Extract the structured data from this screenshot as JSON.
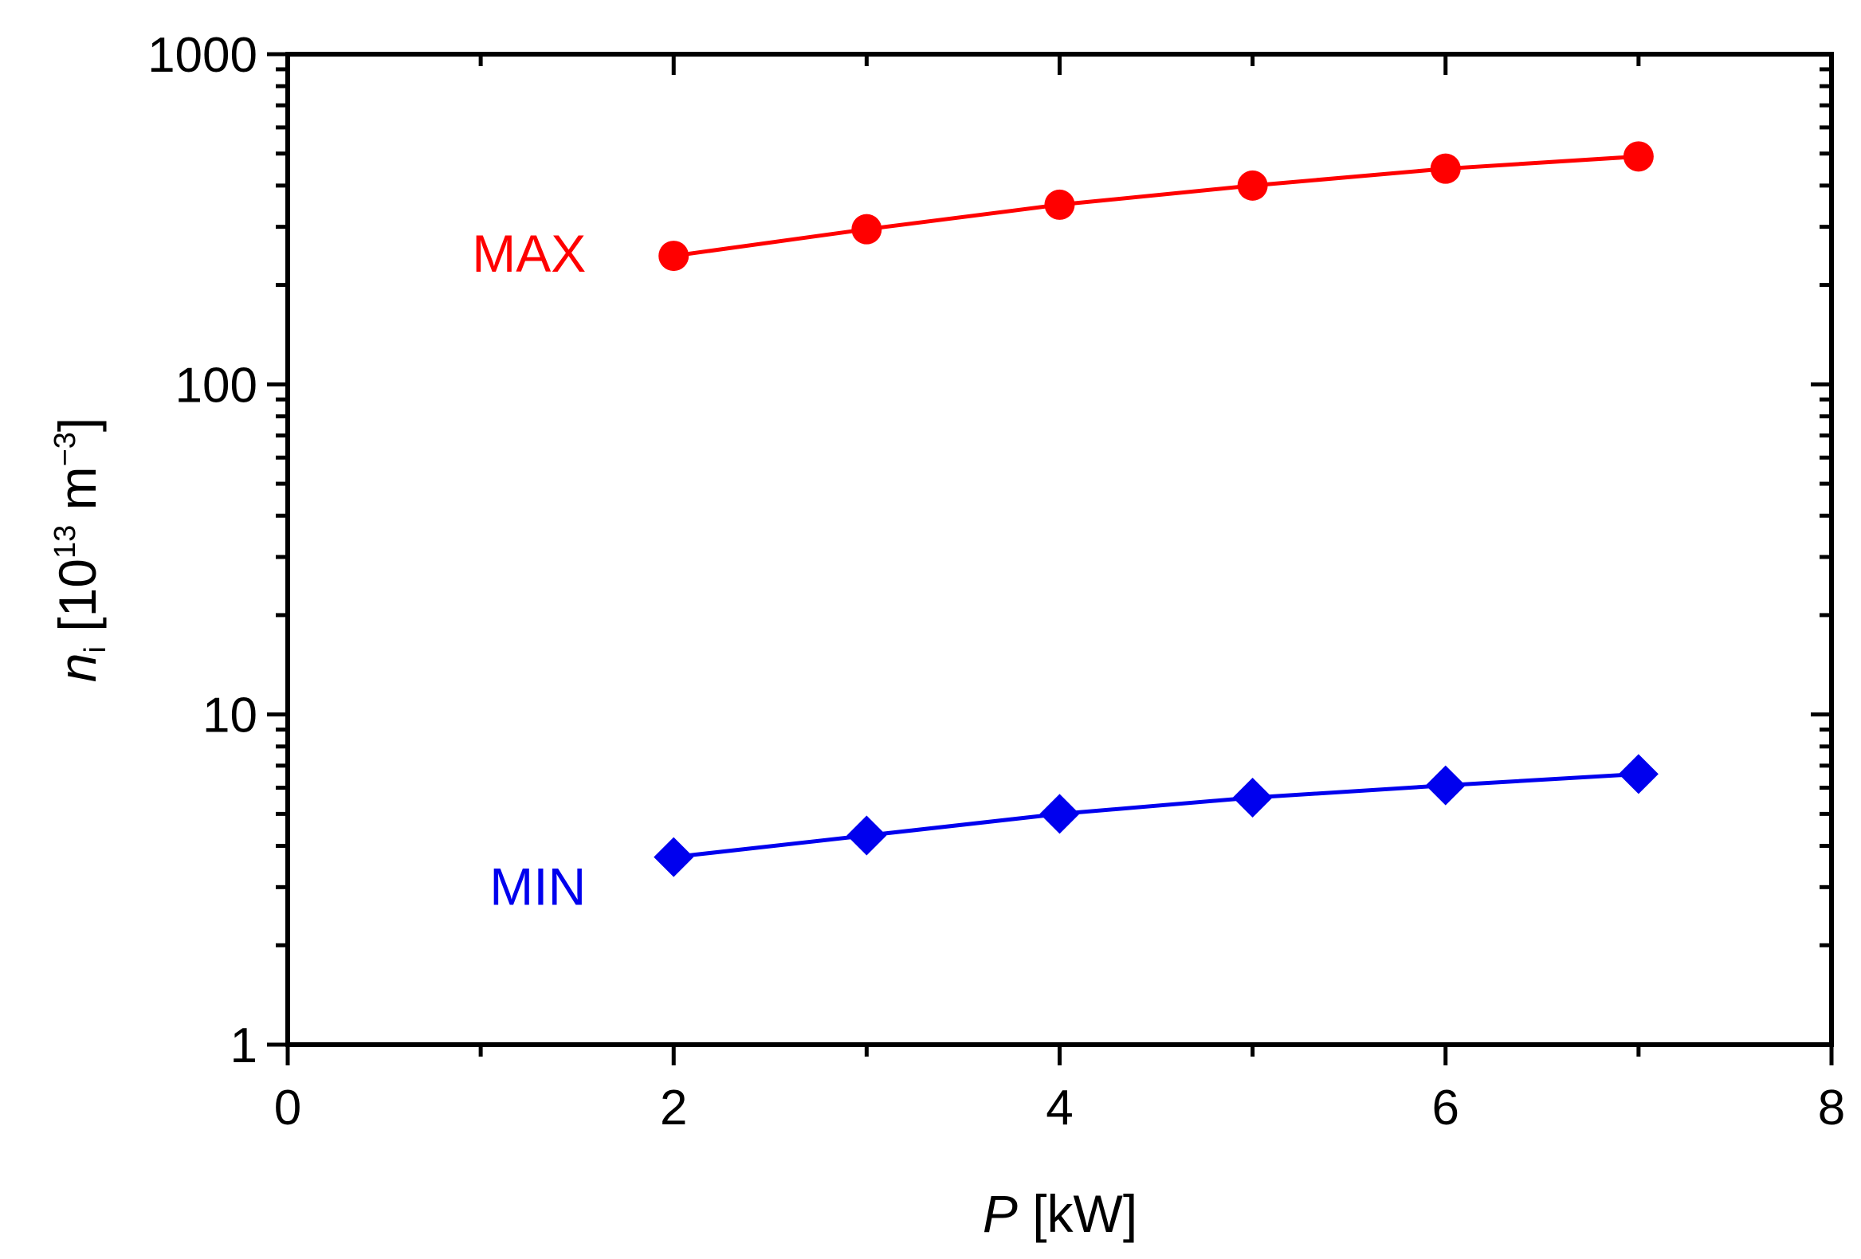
{
  "chart_data": {
    "type": "line",
    "title": "",
    "xlabel": {
      "var": "P",
      "unit": " [kW]"
    },
    "ylabel": {
      "var": "n",
      "sub": "i",
      "pre": " [10",
      "exp": "13",
      "mid": " m",
      "exp2": "−3",
      "post": "]"
    },
    "xscale": "linear",
    "yscale": "log",
    "xlim": [
      0,
      8
    ],
    "ylim": [
      1,
      1000
    ],
    "xticks": [
      0,
      2,
      4,
      6,
      8
    ],
    "xtick_labels": [
      "0",
      "2",
      "4",
      "6",
      "8"
    ],
    "yticks": [
      1,
      10,
      100,
      1000
    ],
    "ytick_labels": [
      "1",
      "10",
      "100",
      "1000"
    ],
    "grid": false,
    "legend": "none",
    "series": [
      {
        "name": "MAX",
        "label": "MAX",
        "color": "#ff0000",
        "marker": "circle",
        "x": [
          2,
          3,
          4,
          5,
          6,
          7
        ],
        "values": [
          245,
          295,
          350,
          400,
          450,
          490
        ]
      },
      {
        "name": "MIN",
        "label": "MIN",
        "color": "#0000ee",
        "marker": "diamond",
        "x": [
          2,
          3,
          4,
          5,
          6,
          7
        ],
        "values": [
          3.7,
          4.3,
          5.0,
          5.6,
          6.1,
          6.6
        ]
      }
    ]
  }
}
